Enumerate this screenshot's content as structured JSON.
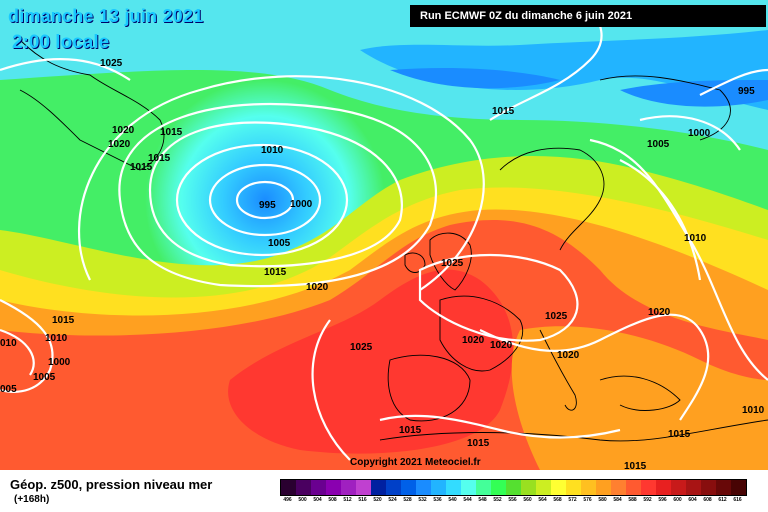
{
  "header": {
    "date": "dimanche 13 juin 2021",
    "time": "2:00 locale",
    "run": "Run ECMWF 0Z du dimanche 6 juin 2021"
  },
  "isobars": [
    {
      "label": "1025"
    },
    {
      "label": "1020"
    },
    {
      "label": "1015"
    },
    {
      "label": "1020"
    },
    {
      "label": "1015"
    },
    {
      "label": "1015"
    },
    {
      "label": "1010"
    },
    {
      "label": "995"
    },
    {
      "label": "1000"
    },
    {
      "label": "1005"
    },
    {
      "label": "1015"
    },
    {
      "label": "1020"
    },
    {
      "label": "1025"
    },
    {
      "label": "1015"
    },
    {
      "label": "995"
    },
    {
      "label": "1000"
    },
    {
      "label": "1005"
    },
    {
      "label": "1010"
    },
    {
      "label": "1025"
    },
    {
      "label": "1020"
    },
    {
      "label": "1020"
    },
    {
      "label": "1020"
    },
    {
      "label": "1025"
    },
    {
      "label": "1020"
    },
    {
      "label": "1015"
    },
    {
      "label": "1010"
    },
    {
      "label": "1000"
    },
    {
      "label": "1005"
    },
    {
      "label": "005"
    },
    {
      "label": "1015"
    },
    {
      "label": "1015"
    },
    {
      "label": "1015"
    },
    {
      "label": "1010"
    },
    {
      "label": "1015"
    },
    {
      "label": "010"
    }
  ],
  "copyright": "Copyright 2021 Meteociel.fr",
  "footer": {
    "field_title": "Géop. z500, pression niveau mer",
    "lead_time": "(+168h)"
  },
  "legend": {
    "ticks": [
      "496",
      "500",
      "504",
      "508",
      "512",
      "516",
      "520",
      "524",
      "528",
      "532",
      "536",
      "540",
      "544",
      "548",
      "552",
      "556",
      "560",
      "564",
      "568",
      "572",
      "576",
      "580",
      "584",
      "588",
      "592",
      "596",
      "600",
      "604",
      "608",
      "612",
      "616"
    ],
    "colors": [
      "#2a0030",
      "#4a0060",
      "#6a0090",
      "#8a00b0",
      "#a020c0",
      "#c040d0",
      "#0020a0",
      "#0040c8",
      "#0060e8",
      "#1a8cff",
      "#22b4ff",
      "#33dcff",
      "#55ffee",
      "#44ff99",
      "#33ff55",
      "#55e030",
      "#99e020",
      "#ccee22",
      "#ffff33",
      "#ffe020",
      "#ffc020",
      "#ffa020",
      "#ff8030",
      "#ff5a30",
      "#ff3830",
      "#e82020",
      "#c81a1a",
      "#a81414",
      "#880e0e",
      "#680808",
      "#480404"
    ]
  }
}
